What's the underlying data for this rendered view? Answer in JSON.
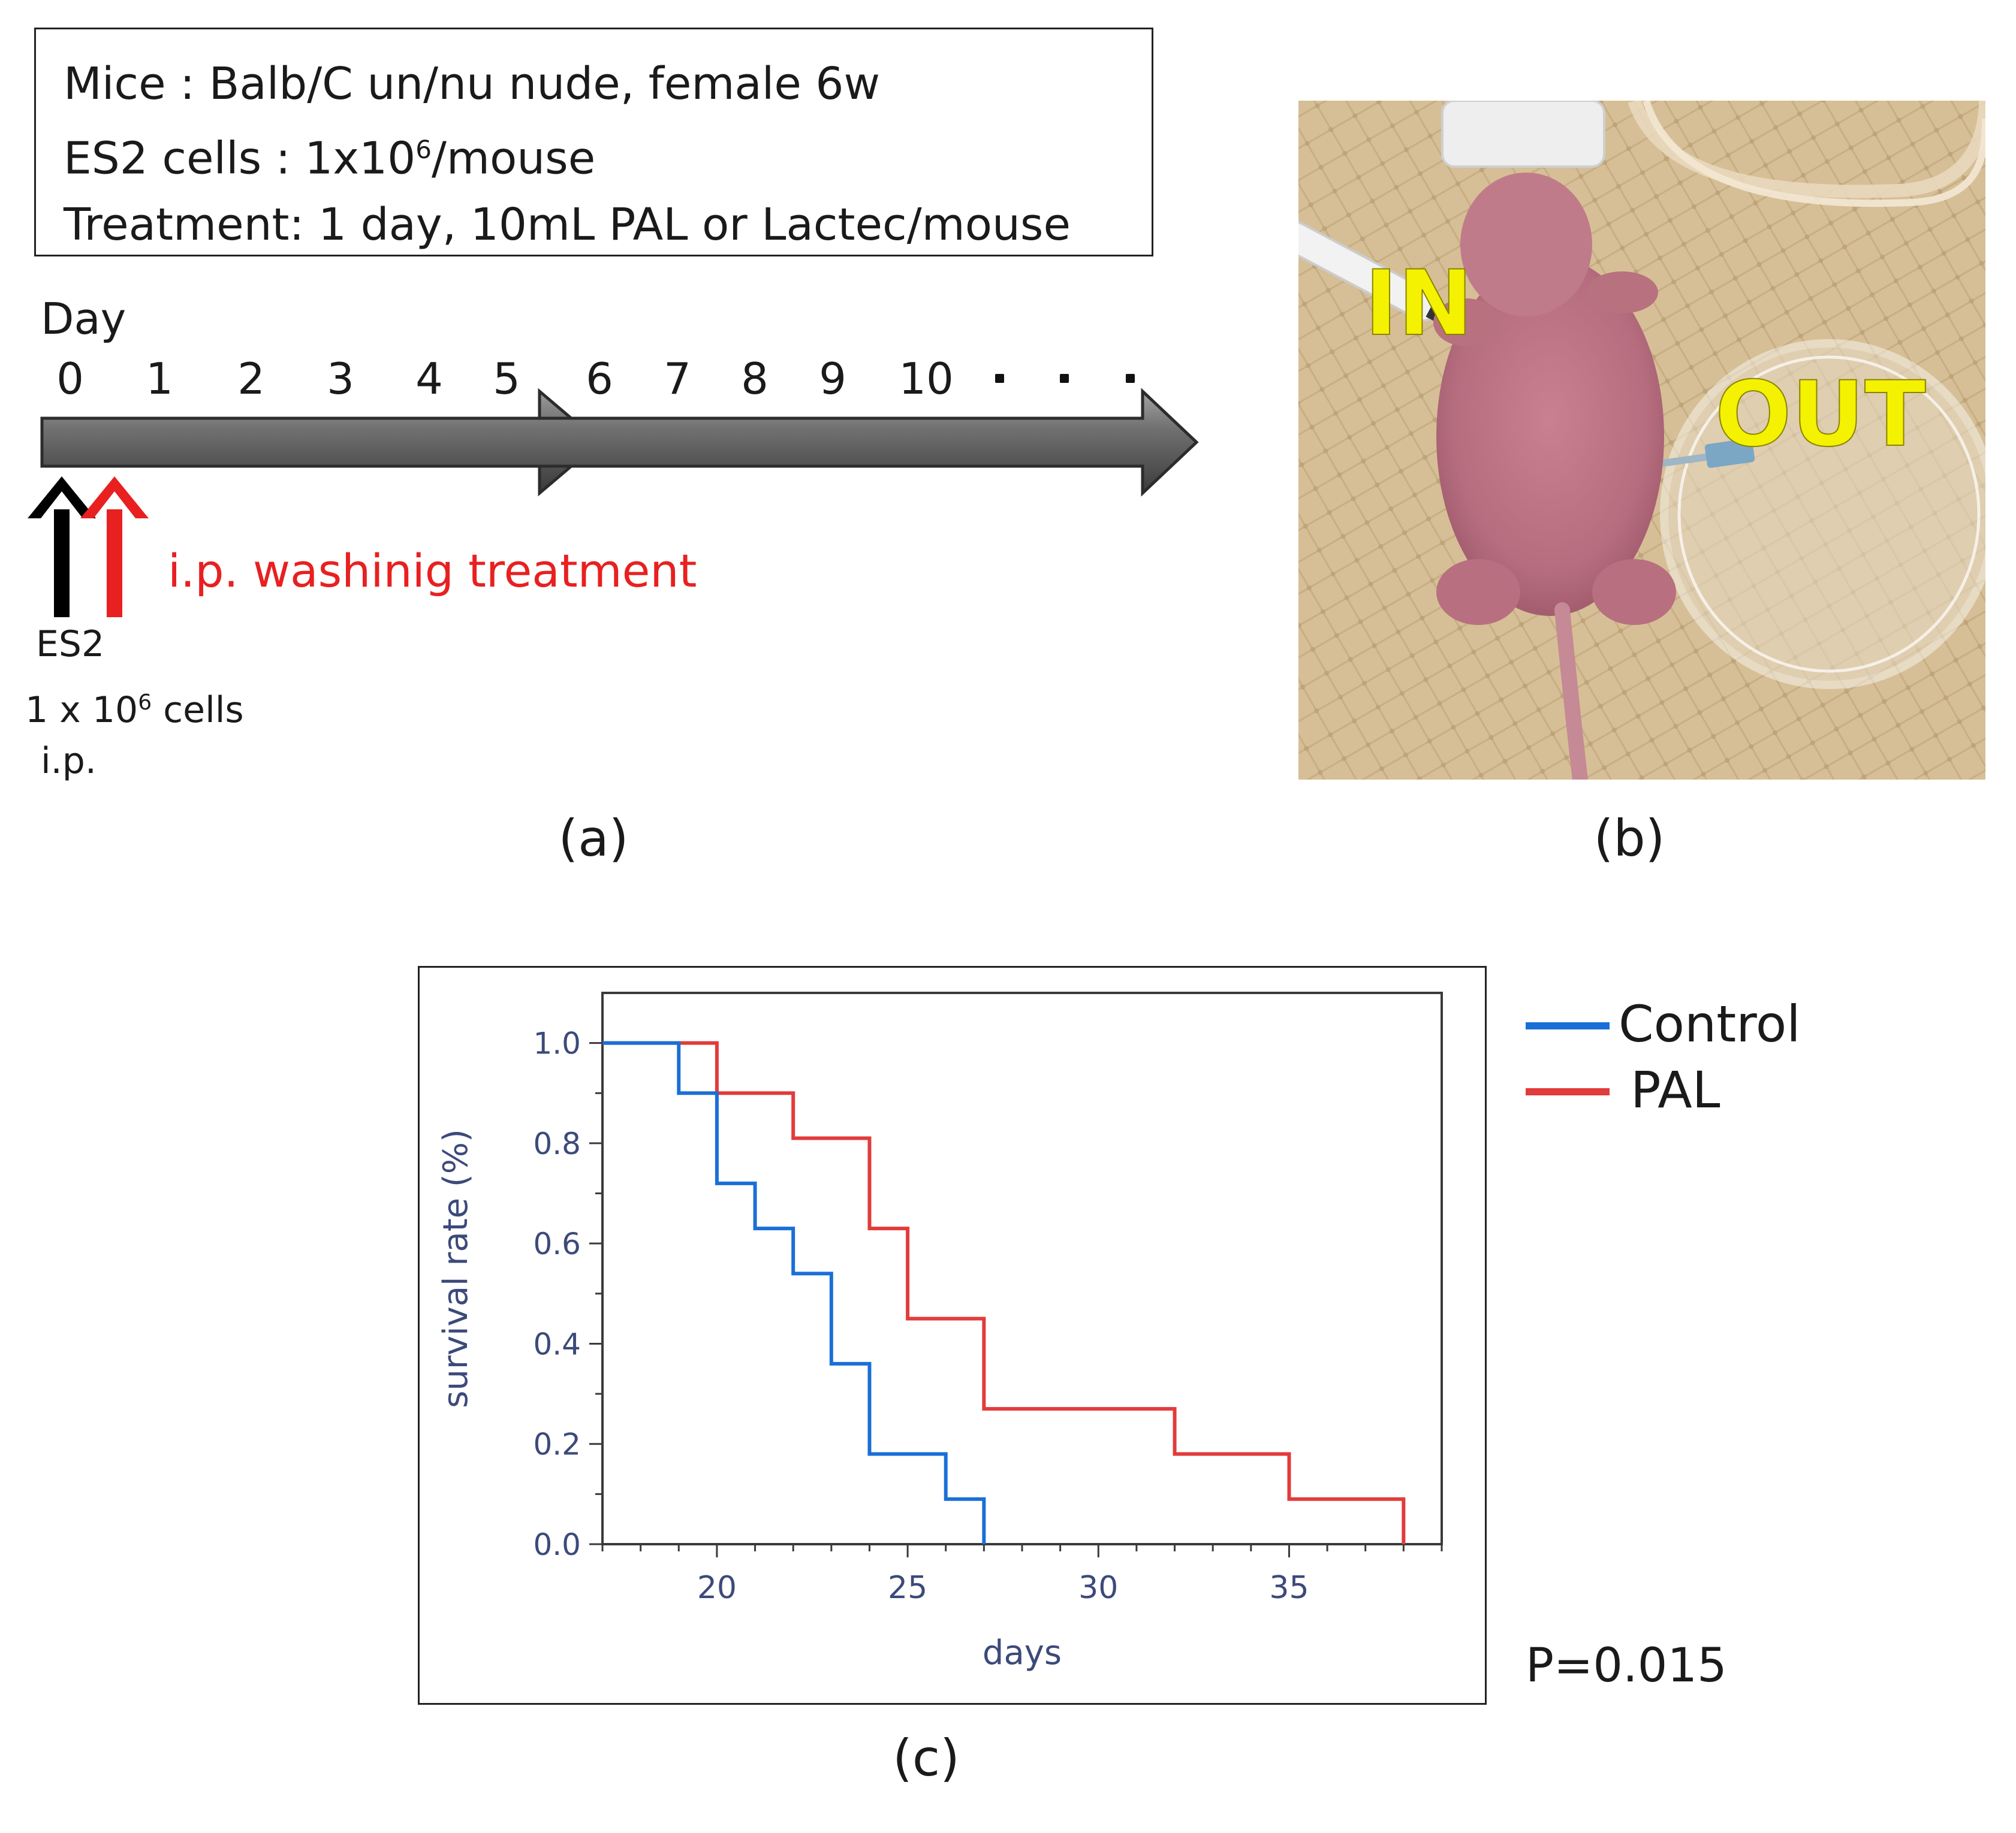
{
  "panel_a": {
    "protocol": {
      "mice_text": "Mice : Balb/C un/nu nude, female 6w",
      "cells_prefix": "ES2 cells : 1x10",
      "cells_exp": "6",
      "cells_suffix": "/mouse",
      "treatment_text": "Treatment: 1 day, 10mL PAL or Lactec/mouse"
    },
    "timeline": {
      "day_label": "Day",
      "days": [
        "0",
        "1",
        "2",
        "3",
        "4",
        "5",
        "6",
        "7",
        "8",
        "9",
        "10"
      ],
      "ellipsis": ". . ."
    },
    "arrows": {
      "black_label": "ES2",
      "dose_prefix": "1 x 10",
      "dose_exp": "6",
      "dose_suffix": " cells",
      "route": "i.p.",
      "red_label": "i.p. washinig treatment",
      "black_color": "#000000",
      "red_color": "#e82020"
    },
    "caption": "(a)"
  },
  "panel_b": {
    "in_label": "IN",
    "out_label": "OUT",
    "label_color": "#f4f200",
    "caption": "(b)"
  },
  "panel_c": {
    "caption": "(c)",
    "p_value": "P=0.015"
  },
  "chart_data": {
    "type": "line",
    "subtype": "kaplan-meier step",
    "title": "",
    "xlabel": "days",
    "ylabel": "survival rate (%)",
    "xlim": [
      17,
      39
    ],
    "ylim": [
      0,
      1.1
    ],
    "x_ticks": [
      20,
      25,
      30,
      35
    ],
    "y_ticks": [
      0.0,
      0.2,
      0.4,
      0.6,
      0.8,
      1.0
    ],
    "x_tick_labels": [
      "20",
      "25",
      "30",
      "35"
    ],
    "y_tick_labels": [
      "0.0",
      "0.2",
      "0.4",
      "0.6",
      "0.8",
      "1.0"
    ],
    "legend_position": "outside-right",
    "grid": false,
    "series": [
      {
        "name": "Control",
        "color": "#1a6fd6",
        "x": [
          17,
          19,
          20,
          21,
          22,
          23,
          24,
          26,
          27
        ],
        "y": [
          1.0,
          0.9,
          0.72,
          0.63,
          0.54,
          0.36,
          0.18,
          0.09,
          0.0
        ]
      },
      {
        "name": "PAL",
        "color": "#e23b3b",
        "x": [
          17,
          20,
          22,
          24,
          25,
          27,
          32,
          35,
          38
        ],
        "y": [
          1.0,
          0.9,
          0.81,
          0.63,
          0.45,
          0.27,
          0.18,
          0.09,
          0.0
        ]
      }
    ]
  }
}
